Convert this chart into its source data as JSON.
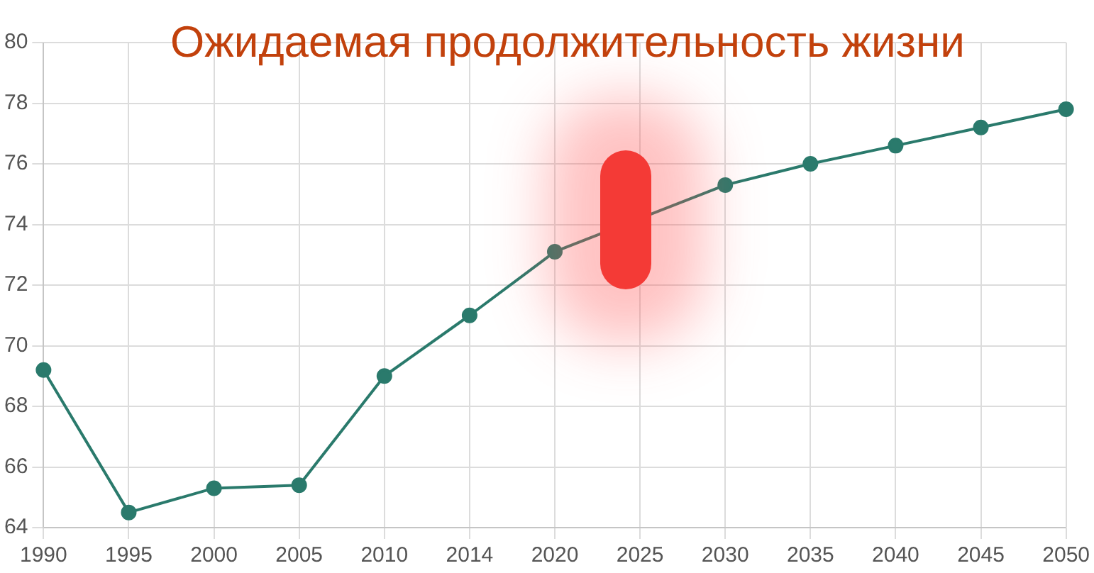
{
  "chart_data": {
    "type": "line",
    "title": "Ожидаемая продолжительность жизни",
    "categories": [
      "1990",
      "1995",
      "2000",
      "2005",
      "2010",
      "2014",
      "2020",
      "2025",
      "2030",
      "2035",
      "2040",
      "2045",
      "2050"
    ],
    "series": [
      {
        "color": "#2a7a6c",
        "values": [
          69.2,
          64.5,
          65.3,
          65.4,
          69.0,
          71.0,
          73.1,
          null,
          75.3,
          76.0,
          76.6,
          77.2,
          77.8
        ]
      }
    ],
    "ylim": [
      64,
      80
    ],
    "yticks": [
      64,
      66,
      68,
      70,
      72,
      74,
      76,
      78,
      80
    ],
    "grid": true,
    "legend": false,
    "marker": "circle",
    "line_style": "solid"
  }
}
